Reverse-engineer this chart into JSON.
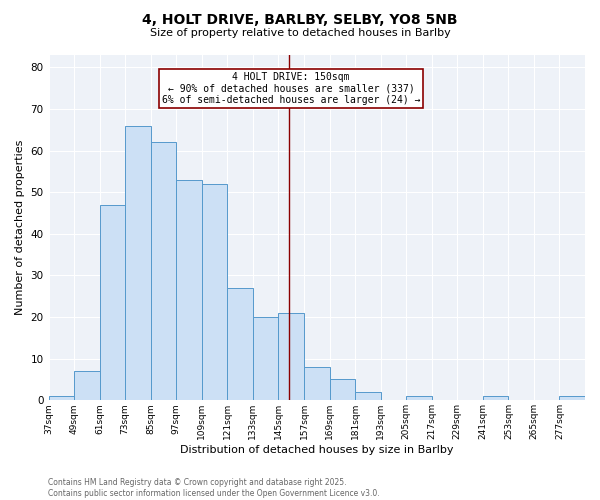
{
  "title_line1": "4, HOLT DRIVE, BARLBY, SELBY, YO8 5NB",
  "title_line2": "Size of property relative to detached houses in Barlby",
  "xlabel": "Distribution of detached houses by size in Barlby",
  "ylabel": "Number of detached properties",
  "bins": [
    37,
    49,
    61,
    73,
    85,
    97,
    109,
    121,
    133,
    145,
    157,
    169,
    181,
    193,
    205,
    217,
    229,
    241,
    253,
    265,
    277,
    289
  ],
  "counts": [
    1,
    7,
    47,
    66,
    62,
    53,
    52,
    27,
    20,
    21,
    8,
    5,
    2,
    0,
    1,
    0,
    0,
    1,
    0,
    0,
    1
  ],
  "bar_color": "#cce0f5",
  "bar_edge_color": "#5599cc",
  "annotation_text": "4 HOLT DRIVE: 150sqm\n← 90% of detached houses are smaller (337)\n6% of semi-detached houses are larger (24) →",
  "annotation_box_color": "white",
  "annotation_box_edge_color": "#8b0000",
  "vline_color": "#8b0000",
  "vline_x": 150,
  "ylim": [
    0,
    83
  ],
  "yticks": [
    0,
    10,
    20,
    30,
    40,
    50,
    60,
    70,
    80
  ],
  "bg_color": "#eef2f8",
  "footer_text": "Contains HM Land Registry data © Crown copyright and database right 2025.\nContains public sector information licensed under the Open Government Licence v3.0.",
  "tick_labels": [
    "37sqm",
    "49sqm",
    "61sqm",
    "73sqm",
    "85sqm",
    "97sqm",
    "109sqm",
    "121sqm",
    "133sqm",
    "145sqm",
    "157sqm",
    "169sqm",
    "181sqm",
    "193sqm",
    "205sqm",
    "217sqm",
    "229sqm",
    "241sqm",
    "253sqm",
    "265sqm",
    "277sqm"
  ],
  "title1_fontsize": 10,
  "title2_fontsize": 8,
  "xlabel_fontsize": 8,
  "ylabel_fontsize": 8,
  "tick_fontsize": 6.5,
  "ytick_fontsize": 7.5,
  "footer_fontsize": 5.5,
  "annot_fontsize": 7
}
